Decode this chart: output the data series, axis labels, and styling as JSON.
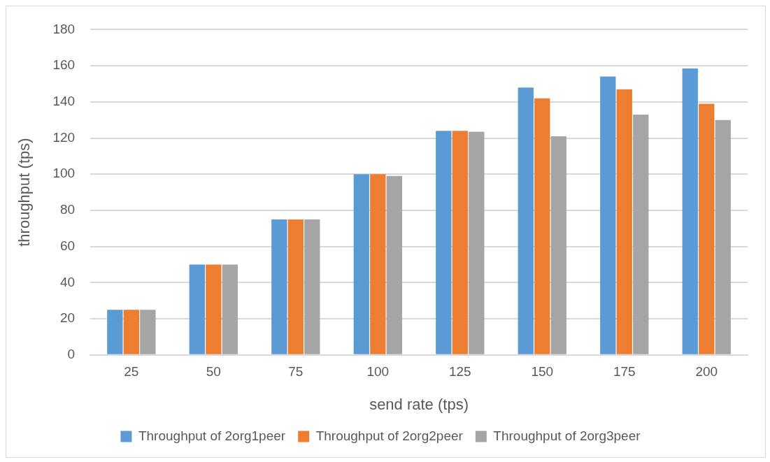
{
  "chart_data": {
    "type": "bar",
    "xlabel": "send rate (tps)",
    "ylabel": "throughput (tps)",
    "categories": [
      "25",
      "50",
      "75",
      "100",
      "125",
      "150",
      "175",
      "200"
    ],
    "series": [
      {
        "name": "Throughput of 2org1peer",
        "color": "#5b9bd5",
        "values": [
          25,
          50,
          75,
          100,
          124,
          148,
          154,
          158.5
        ]
      },
      {
        "name": "Throughput of 2org2peer",
        "color": "#ed7d31",
        "values": [
          25,
          50,
          75,
          100,
          124,
          142,
          147,
          139
        ]
      },
      {
        "name": "Throughput of 2org3peer",
        "color": "#a5a5a5",
        "values": [
          25,
          50,
          75,
          99,
          123.5,
          121,
          133,
          130
        ]
      }
    ],
    "ylim": [
      0,
      180
    ],
    "yticks": [
      0,
      20,
      40,
      60,
      80,
      100,
      120,
      140,
      160,
      180
    ],
    "grid": "y",
    "legend": "bottom"
  }
}
